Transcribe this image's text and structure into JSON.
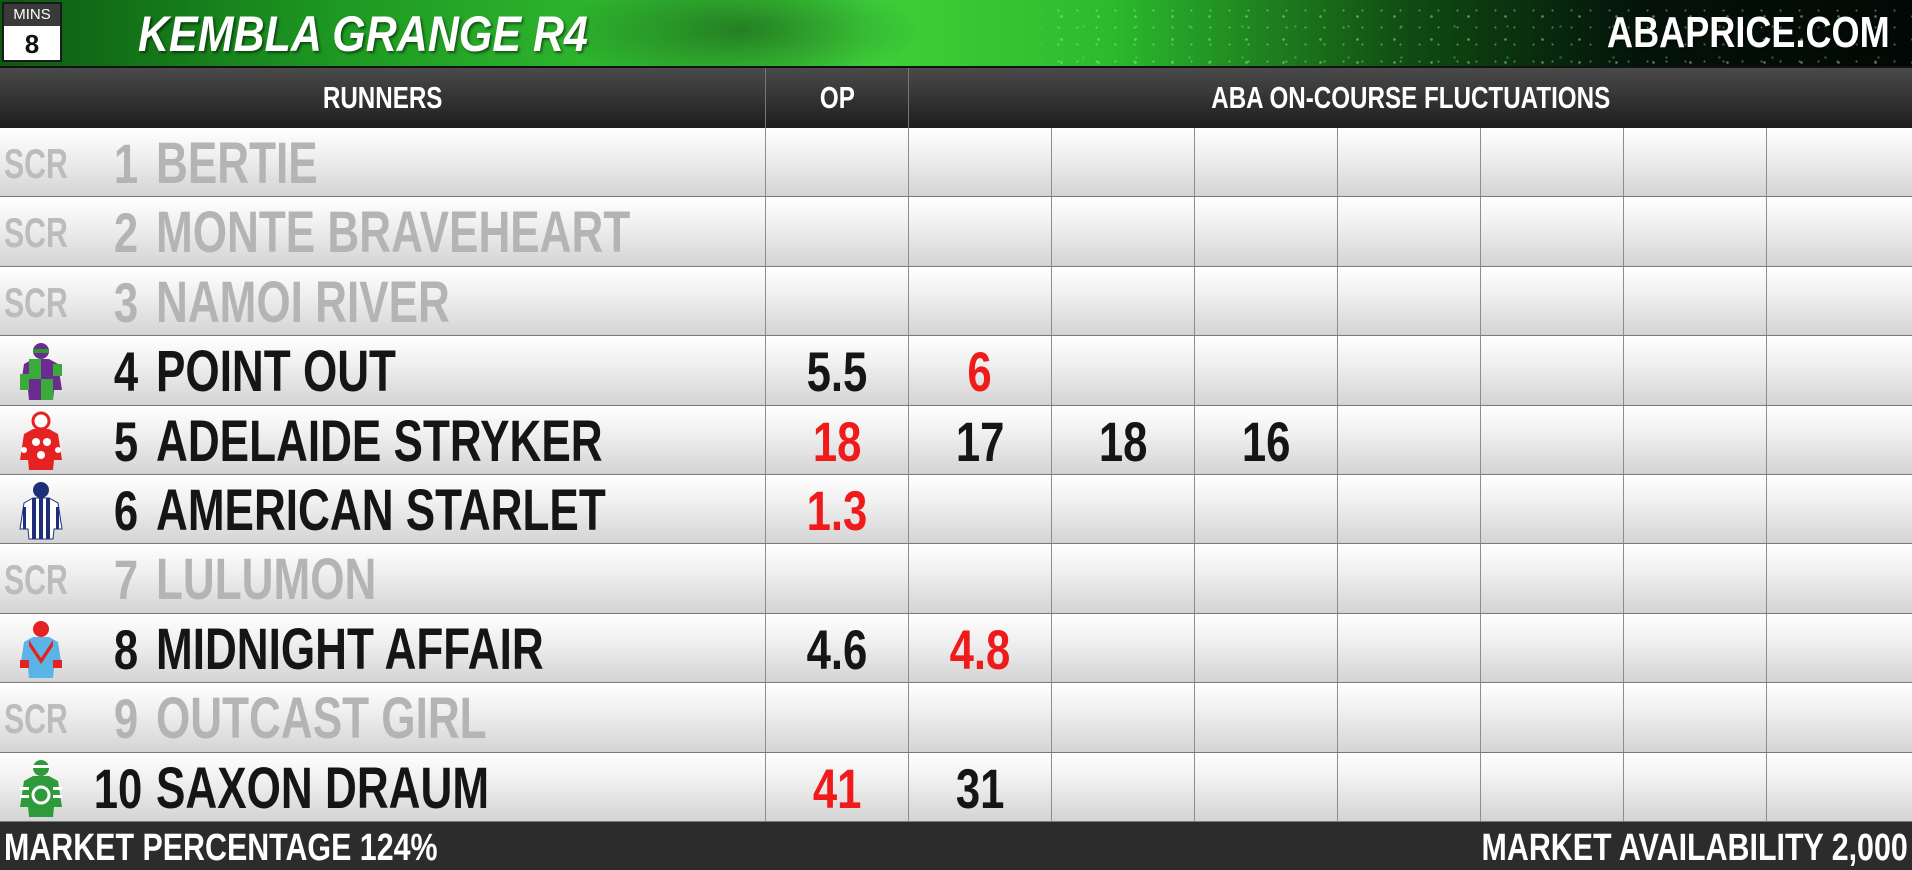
{
  "header": {
    "mins_label": "MINS",
    "mins_value": "8",
    "race_title": "KEMBLA GRANGE R4",
    "site_name": "ABAPRICE.COM"
  },
  "columns": {
    "runners": "RUNNERS",
    "op": "OP",
    "fluctuations": "ABA ON-COURSE FLUCTUATIONS"
  },
  "runners": [
    {
      "number": "1",
      "name": "BERTIE",
      "scratched": true,
      "scr_label": "SCR",
      "prices": []
    },
    {
      "number": "2",
      "name": "MONTE BRAVEHEART",
      "scratched": true,
      "scr_label": "SCR",
      "prices": []
    },
    {
      "number": "3",
      "name": "NAMOI RIVER",
      "scratched": true,
      "scr_label": "SCR",
      "prices": []
    },
    {
      "number": "4",
      "name": "POINT OUT",
      "scratched": false,
      "silk": "silk-purple-green-icon",
      "prices": [
        {
          "value": "5.5",
          "color": "#151515"
        },
        {
          "value": "6",
          "color": "#f01a1a"
        }
      ]
    },
    {
      "number": "5",
      "name": "ADELAIDE STRYKER",
      "scratched": false,
      "silk": "silk-red-white-stars-icon",
      "prices": [
        {
          "value": "18",
          "color": "#f01a1a"
        },
        {
          "value": "17",
          "color": "#151515"
        },
        {
          "value": "18",
          "color": "#151515"
        },
        {
          "value": "16",
          "color": "#151515"
        }
      ]
    },
    {
      "number": "6",
      "name": "AMERICAN STARLET",
      "scratched": false,
      "silk": "silk-navy-white-stripes-icon",
      "prices": [
        {
          "value": "1.3",
          "color": "#f01a1a"
        }
      ]
    },
    {
      "number": "7",
      "name": "LULUMON",
      "scratched": true,
      "scr_label": "SCR",
      "prices": []
    },
    {
      "number": "8",
      "name": "MIDNIGHT AFFAIR",
      "scratched": false,
      "silk": "silk-lightblue-red-chevron-icon",
      "prices": [
        {
          "value": "4.6",
          "color": "#151515"
        },
        {
          "value": "4.8",
          "color": "#f01a1a"
        }
      ]
    },
    {
      "number": "9",
      "name": "OUTCAST GIRL",
      "scratched": true,
      "scr_label": "SCR",
      "prices": []
    },
    {
      "number": "10",
      "name": "SAXON DRAUM",
      "scratched": false,
      "silk": "silk-green-white-icon",
      "prices": [
        {
          "value": "41",
          "color": "#f01a1a"
        },
        {
          "value": "31",
          "color": "#151515"
        }
      ]
    }
  ],
  "footer": {
    "market_percentage": "MARKET PERCENTAGE  124%",
    "market_availability": "MARKET AVAILABILITY  2,000"
  },
  "colors": {
    "header_green": "#3fd13a",
    "rise_red": "#f01a1a",
    "scratched_grey": "#b4b4b4"
  }
}
